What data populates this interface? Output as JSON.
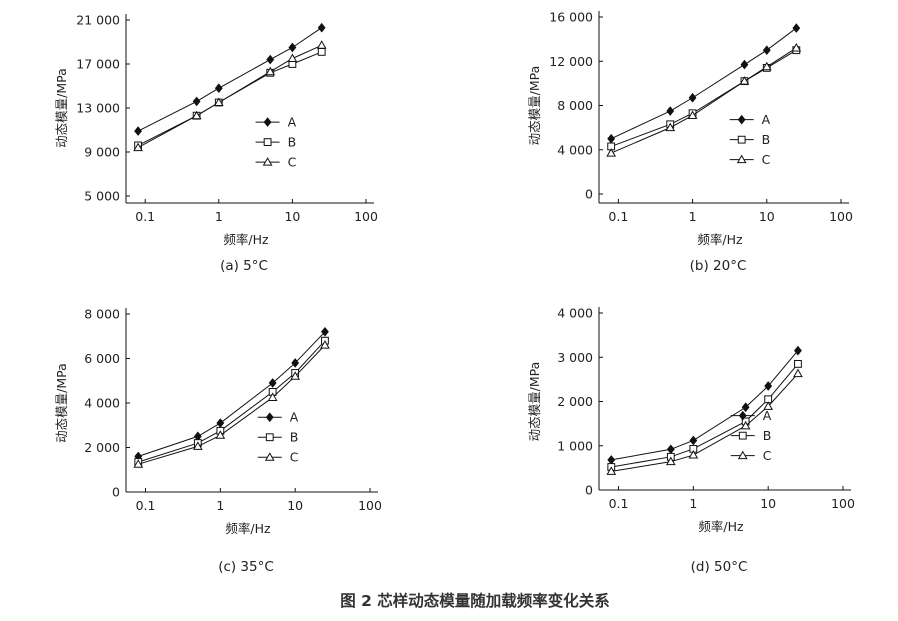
{
  "caption": "图 2  芯样动态模量随加载频率变化关系",
  "chart_data": [
    {
      "type": "line",
      "title": "(a) 5°C",
      "xlabel": "频率/Hz",
      "ylabel": "动态模量/MPa",
      "xscale": "log",
      "xlim": [
        0.08,
        100
      ],
      "xticks": [
        0.1,
        1,
        10,
        100
      ],
      "xtick_labels": [
        "0.1",
        "1",
        "10",
        "100"
      ],
      "ylim": [
        5000,
        21000
      ],
      "yticks": [
        5000,
        9000,
        13000,
        17000,
        21000
      ],
      "ytick_labels": [
        "5 000",
        "9 000",
        "13 000",
        "17 000",
        "21 000"
      ],
      "legend_position": "right",
      "x": [
        0.08,
        0.5,
        1,
        5,
        10,
        25
      ],
      "series": [
        {
          "name": "A",
          "marker": "diamond",
          "values": [
            10900,
            13600,
            14800,
            17400,
            18500,
            20300
          ]
        },
        {
          "name": "B",
          "marker": "square",
          "values": [
            9600,
            12300,
            13500,
            16200,
            17000,
            18100
          ]
        },
        {
          "name": "C",
          "marker": "triangle",
          "values": [
            9400,
            12300,
            13500,
            16300,
            17500,
            18700
          ]
        }
      ]
    },
    {
      "type": "line",
      "title": "(b) 20°C",
      "xlabel": "频率/Hz",
      "ylabel": "动态模量/MPa",
      "xscale": "log",
      "xlim": [
        0.08,
        100
      ],
      "xticks": [
        0.1,
        1,
        10,
        100
      ],
      "xtick_labels": [
        "0.1",
        "1",
        "10",
        "100"
      ],
      "ylim": [
        0,
        16000
      ],
      "yticks": [
        0,
        4000,
        8000,
        12000,
        16000
      ],
      "ytick_labels": [
        "0",
        "4 000",
        "8 000",
        "12 000",
        "16 000"
      ],
      "legend_position": "right",
      "x": [
        0.08,
        0.5,
        1,
        5,
        10,
        25
      ],
      "series": [
        {
          "name": "A",
          "marker": "diamond",
          "values": [
            5000,
            7500,
            8700,
            11700,
            13000,
            15000
          ]
        },
        {
          "name": "B",
          "marker": "square",
          "values": [
            4300,
            6300,
            7300,
            10200,
            11400,
            13000
          ]
        },
        {
          "name": "C",
          "marker": "triangle",
          "values": [
            3700,
            6000,
            7100,
            10200,
            11500,
            13200
          ]
        }
      ]
    },
    {
      "type": "line",
      "title": "(c) 35°C",
      "xlabel": "频率/Hz",
      "ylabel": "动态模量/MPa",
      "xscale": "log",
      "xlim": [
        0.08,
        100
      ],
      "xticks": [
        0.1,
        1,
        10,
        100
      ],
      "xtick_labels": [
        "0.1",
        "1",
        "10",
        "100"
      ],
      "ylim": [
        0,
        8000
      ],
      "yticks": [
        0,
        2000,
        4000,
        6000,
        8000
      ],
      "ytick_labels": [
        "0",
        "2 000",
        "4 000",
        "6 000",
        "8 000"
      ],
      "legend_position": "right",
      "x": [
        0.08,
        0.5,
        1,
        5,
        10,
        25
      ],
      "series": [
        {
          "name": "A",
          "marker": "diamond",
          "values": [
            1600,
            2500,
            3100,
            4900,
            5800,
            7200
          ]
        },
        {
          "name": "B",
          "marker": "square",
          "values": [
            1350,
            2200,
            2750,
            4500,
            5350,
            6800
          ]
        },
        {
          "name": "C",
          "marker": "triangle",
          "values": [
            1250,
            2050,
            2550,
            4250,
            5200,
            6600
          ]
        }
      ]
    },
    {
      "type": "line",
      "title": "(d) 50°C",
      "xlabel": "频率/Hz",
      "ylabel": "动态模量/MPa",
      "xscale": "log",
      "xlim": [
        0.08,
        100
      ],
      "xticks": [
        0.1,
        1,
        10,
        100
      ],
      "xtick_labels": [
        "0.1",
        "1",
        "10",
        "100"
      ],
      "ylim": [
        0,
        4000
      ],
      "yticks": [
        0,
        1000,
        2000,
        3000,
        4000
      ],
      "ytick_labels": [
        "0",
        "1 000",
        "2 000",
        "3 000",
        "4 000"
      ],
      "legend_position": "right",
      "x": [
        0.08,
        0.5,
        1,
        5,
        10,
        25
      ],
      "series": [
        {
          "name": "A",
          "marker": "diamond",
          "values": [
            680,
            920,
            1120,
            1870,
            2350,
            3150
          ]
        },
        {
          "name": "B",
          "marker": "square",
          "values": [
            520,
            750,
            930,
            1550,
            2050,
            2850
          ]
        },
        {
          "name": "C",
          "marker": "triangle",
          "values": [
            420,
            640,
            790,
            1450,
            1890,
            2630
          ]
        }
      ]
    }
  ]
}
